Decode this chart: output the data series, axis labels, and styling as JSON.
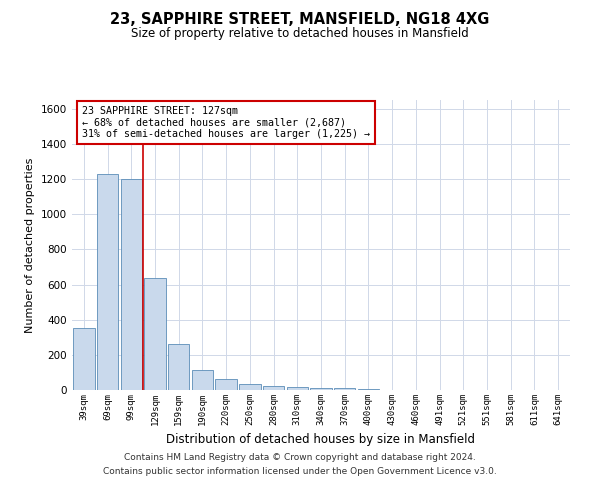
{
  "title": "23, SAPPHIRE STREET, MANSFIELD, NG18 4XG",
  "subtitle": "Size of property relative to detached houses in Mansfield",
  "xlabel": "Distribution of detached houses by size in Mansfield",
  "ylabel": "Number of detached properties",
  "categories": [
    "39sqm",
    "69sqm",
    "99sqm",
    "129sqm",
    "159sqm",
    "190sqm",
    "220sqm",
    "250sqm",
    "280sqm",
    "310sqm",
    "340sqm",
    "370sqm",
    "400sqm",
    "430sqm",
    "460sqm",
    "491sqm",
    "521sqm",
    "551sqm",
    "581sqm",
    "611sqm",
    "641sqm"
  ],
  "values": [
    350,
    1230,
    1200,
    640,
    260,
    115,
    65,
    35,
    25,
    15,
    10,
    10,
    5,
    2,
    1,
    1,
    0,
    0,
    0,
    0,
    0
  ],
  "bar_color": "#c9d9ec",
  "bar_edge_color": "#5b8db8",
  "highlight_index": 3,
  "highlight_line_color": "#cc0000",
  "ylim": [
    0,
    1650
  ],
  "yticks": [
    0,
    200,
    400,
    600,
    800,
    1000,
    1200,
    1400,
    1600
  ],
  "annotation_line1": "23 SAPPHIRE STREET: 127sqm",
  "annotation_line2": "← 68% of detached houses are smaller (2,687)",
  "annotation_line3": "31% of semi-detached houses are larger (1,225) →",
  "annotation_box_color": "#ffffff",
  "annotation_box_edge": "#cc0000",
  "footer_line1": "Contains HM Land Registry data © Crown copyright and database right 2024.",
  "footer_line2": "Contains public sector information licensed under the Open Government Licence v3.0.",
  "grid_color": "#d0d8e8",
  "bg_color": "#ffffff"
}
